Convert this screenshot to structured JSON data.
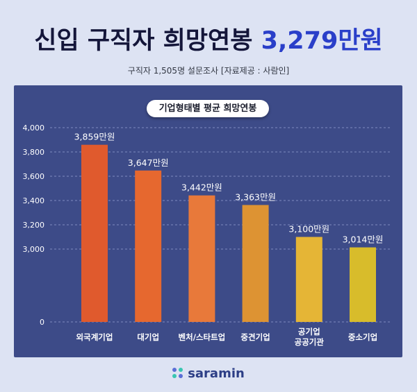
{
  "headline": {
    "main": "신입 구직자 희망연봉",
    "highlight": "3,279만원"
  },
  "subline": "구직자 1,505명 설문조사 [자료제공 : 사람인]",
  "brand": "saramin",
  "colors": {
    "background": "#dde3f3",
    "panel": "#3d4b88",
    "accent": "#2a3fc9"
  },
  "chart_data": {
    "type": "bar",
    "title": "기업형태별 평균 희망연봉",
    "categories": [
      "외국계기업",
      "대기업",
      "벤처/스타트업",
      "중견기업",
      "공기업\n공공기관",
      "중소기업"
    ],
    "values": [
      3859,
      3647,
      3442,
      3363,
      3100,
      3014
    ],
    "value_labels": [
      "3,859만원",
      "3,647만원",
      "3,442만원",
      "3,363만원",
      "3,100만원",
      "3,014만원"
    ],
    "bar_colors": [
      "#e05a2d",
      "#e6682f",
      "#e8793a",
      "#dd9333",
      "#e5b536",
      "#d8bc2b"
    ],
    "y_ticks": [
      {
        "value": 0,
        "label": "0"
      },
      {
        "value": 3000,
        "label": "3,000"
      },
      {
        "value": 3200,
        "label": "3,200"
      },
      {
        "value": 3400,
        "label": "3,400"
      },
      {
        "value": 3600,
        "label": "3,600"
      },
      {
        "value": 3800,
        "label": "3,800"
      },
      {
        "value": 4000,
        "label": "4,000"
      }
    ],
    "y_axis_break": true,
    "grid": true,
    "xlabel": "",
    "ylabel": ""
  }
}
